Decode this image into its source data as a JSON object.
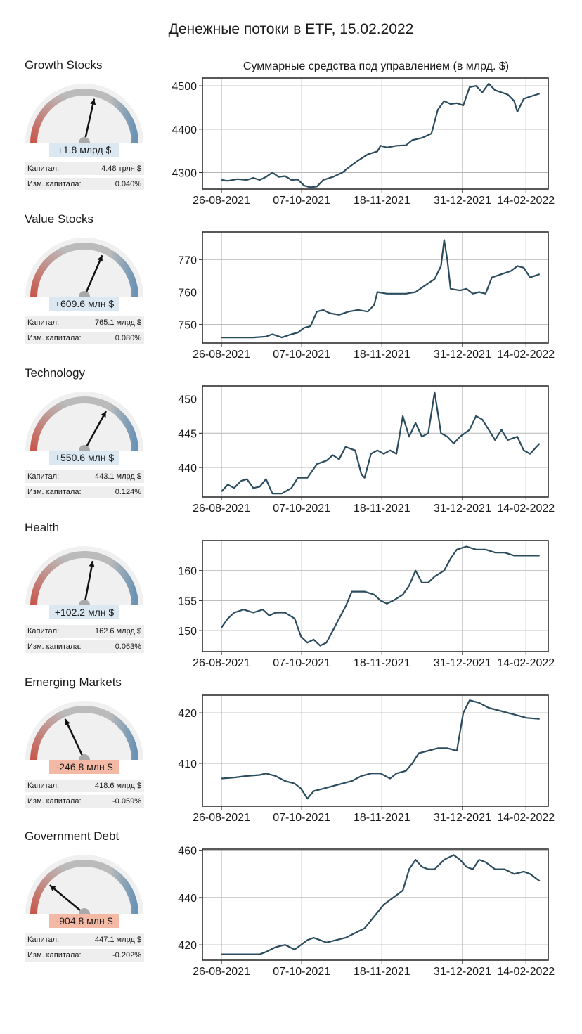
{
  "title": "Денежные потоки в ETF, 15.02.2022",
  "subtitle": "Суммарные средства под управлением (в млрд. $)",
  "labels": {
    "capital": "Капитал:",
    "change": "Изм. капитала:"
  },
  "colors": {
    "line": "#2b4c5e",
    "gauge_low": "#c8564a",
    "gauge_mid": "#bbbbbb",
    "gauge_high": "#6b93b4",
    "positive_badge": "#dce8f1",
    "negative_badge": "#f3b9a5"
  },
  "panels": [
    {
      "name": "Growth Stocks",
      "flow": "+1.8 млрд $",
      "flow_sign": "pos",
      "capital": "4.48 трлн $",
      "change": "0.040%",
      "gauge_value": 0.57,
      "chart_data": {
        "type": "line",
        "x_ticks": [
          "26-08-2021",
          "07-10-2021",
          "18-11-2021",
          "31-12-2021",
          "14-02-2022"
        ],
        "y_ticks": [
          4300,
          4400,
          4500
        ],
        "ylim": [
          4262,
          4518
        ],
        "grid": true,
        "points": [
          [
            0,
            4283
          ],
          [
            0.02,
            4281
          ],
          [
            0.05,
            4285
          ],
          [
            0.08,
            4283
          ],
          [
            0.1,
            4288
          ],
          [
            0.12,
            4283
          ],
          [
            0.14,
            4290
          ],
          [
            0.16,
            4300
          ],
          [
            0.18,
            4290
          ],
          [
            0.2,
            4292
          ],
          [
            0.22,
            4283
          ],
          [
            0.24,
            4284
          ],
          [
            0.26,
            4270
          ],
          [
            0.28,
            4266
          ],
          [
            0.3,
            4268
          ],
          [
            0.32,
            4283
          ],
          [
            0.35,
            4290
          ],
          [
            0.38,
            4300
          ],
          [
            0.4,
            4312
          ],
          [
            0.43,
            4328
          ],
          [
            0.46,
            4342
          ],
          [
            0.49,
            4349
          ],
          [
            0.5,
            4362
          ],
          [
            0.52,
            4358
          ],
          [
            0.55,
            4362
          ],
          [
            0.58,
            4363
          ],
          [
            0.6,
            4375
          ],
          [
            0.63,
            4380
          ],
          [
            0.66,
            4390
          ],
          [
            0.68,
            4445
          ],
          [
            0.7,
            4465
          ],
          [
            0.72,
            4458
          ],
          [
            0.74,
            4460
          ],
          [
            0.76,
            4455
          ],
          [
            0.78,
            4497
          ],
          [
            0.8,
            4500
          ],
          [
            0.82,
            4485
          ],
          [
            0.84,
            4505
          ],
          [
            0.86,
            4490
          ],
          [
            0.88,
            4485
          ],
          [
            0.9,
            4480
          ],
          [
            0.92,
            4465
          ],
          [
            0.93,
            4440
          ],
          [
            0.95,
            4470
          ],
          [
            0.97,
            4475
          ],
          [
            1,
            4482
          ]
        ]
      }
    },
    {
      "name": "Value Stocks",
      "flow": "+609.6 млн $",
      "flow_sign": "pos",
      "capital": "765.1 млрд $",
      "change": "0.080%",
      "gauge_value": 0.63,
      "chart_data": {
        "type": "line",
        "x_ticks": [
          "26-08-2021",
          "07-10-2021",
          "18-11-2021",
          "31-12-2021",
          "14-02-2022"
        ],
        "y_ticks": [
          750,
          760,
          770
        ],
        "ylim": [
          744.3,
          778.5
        ],
        "grid": true,
        "points": [
          [
            0,
            746
          ],
          [
            0.05,
            746
          ],
          [
            0.1,
            746
          ],
          [
            0.14,
            746.3
          ],
          [
            0.16,
            747
          ],
          [
            0.19,
            746
          ],
          [
            0.22,
            747
          ],
          [
            0.24,
            747.5
          ],
          [
            0.26,
            749
          ],
          [
            0.28,
            749.5
          ],
          [
            0.3,
            754
          ],
          [
            0.32,
            754.5
          ],
          [
            0.34,
            753.5
          ],
          [
            0.37,
            753
          ],
          [
            0.4,
            754
          ],
          [
            0.43,
            754.5
          ],
          [
            0.46,
            754
          ],
          [
            0.48,
            756
          ],
          [
            0.49,
            760
          ],
          [
            0.52,
            759.5
          ],
          [
            0.55,
            759.5
          ],
          [
            0.58,
            759.5
          ],
          [
            0.61,
            760
          ],
          [
            0.64,
            762
          ],
          [
            0.67,
            764
          ],
          [
            0.69,
            768
          ],
          [
            0.7,
            776
          ],
          [
            0.71,
            770
          ],
          [
            0.72,
            761
          ],
          [
            0.75,
            760.5
          ],
          [
            0.77,
            761
          ],
          [
            0.79,
            759.5
          ],
          [
            0.81,
            760
          ],
          [
            0.83,
            759.5
          ],
          [
            0.85,
            764.5
          ],
          [
            0.88,
            765.5
          ],
          [
            0.91,
            766.5
          ],
          [
            0.93,
            768
          ],
          [
            0.95,
            767.5
          ],
          [
            0.97,
            764.5
          ],
          [
            1,
            765.5
          ]
        ]
      }
    },
    {
      "name": "Technology",
      "flow": "+550.6 млн $",
      "flow_sign": "pos",
      "capital": "443.1 млрд $",
      "change": "0.124%",
      "gauge_value": 0.66,
      "chart_data": {
        "type": "line",
        "x_ticks": [
          "26-08-2021",
          "07-10-2021",
          "18-11-2021",
          "31-12-2021",
          "14-02-2022"
        ],
        "y_ticks": [
          440,
          445,
          450
        ],
        "ylim": [
          435.7,
          451.9
        ],
        "grid": true,
        "points": [
          [
            0,
            436.5
          ],
          [
            0.02,
            437.5
          ],
          [
            0.04,
            437
          ],
          [
            0.06,
            438
          ],
          [
            0.08,
            438.3
          ],
          [
            0.1,
            437
          ],
          [
            0.12,
            437.2
          ],
          [
            0.14,
            438.3
          ],
          [
            0.16,
            436.2
          ],
          [
            0.19,
            436.2
          ],
          [
            0.22,
            437
          ],
          [
            0.24,
            438.5
          ],
          [
            0.27,
            438.5
          ],
          [
            0.3,
            440.5
          ],
          [
            0.33,
            441
          ],
          [
            0.35,
            441.8
          ],
          [
            0.37,
            441.2
          ],
          [
            0.39,
            443
          ],
          [
            0.42,
            442.5
          ],
          [
            0.44,
            439
          ],
          [
            0.45,
            438.5
          ],
          [
            0.47,
            442
          ],
          [
            0.49,
            442.5
          ],
          [
            0.51,
            442
          ],
          [
            0.53,
            442.5
          ],
          [
            0.55,
            442
          ],
          [
            0.57,
            447.5
          ],
          [
            0.59,
            444.5
          ],
          [
            0.61,
            446.5
          ],
          [
            0.63,
            444.5
          ],
          [
            0.65,
            445
          ],
          [
            0.67,
            451
          ],
          [
            0.69,
            445
          ],
          [
            0.71,
            444.5
          ],
          [
            0.73,
            443.5
          ],
          [
            0.75,
            444.5
          ],
          [
            0.78,
            445.5
          ],
          [
            0.8,
            447.5
          ],
          [
            0.82,
            447
          ],
          [
            0.84,
            445.5
          ],
          [
            0.86,
            444
          ],
          [
            0.88,
            445.5
          ],
          [
            0.9,
            444
          ],
          [
            0.93,
            444.5
          ],
          [
            0.95,
            442.5
          ],
          [
            0.97,
            442
          ],
          [
            1,
            443.5
          ]
        ]
      }
    },
    {
      "name": "Health",
      "flow": "+102.2 млн $",
      "flow_sign": "pos",
      "capital": "162.6 млрд $",
      "change": "0.063%",
      "gauge_value": 0.56,
      "chart_data": {
        "type": "line",
        "x_ticks": [
          "26-08-2021",
          "07-10-2021",
          "18-11-2021",
          "31-12-2021",
          "14-02-2022"
        ],
        "y_ticks": [
          150,
          155,
          160
        ],
        "ylim": [
          146.5,
          165
        ],
        "grid": true,
        "points": [
          [
            0,
            150.5
          ],
          [
            0.02,
            152
          ],
          [
            0.04,
            153
          ],
          [
            0.07,
            153.5
          ],
          [
            0.1,
            153
          ],
          [
            0.13,
            153.5
          ],
          [
            0.15,
            152.5
          ],
          [
            0.17,
            153
          ],
          [
            0.2,
            153
          ],
          [
            0.23,
            152
          ],
          [
            0.25,
            149
          ],
          [
            0.27,
            148
          ],
          [
            0.29,
            148.5
          ],
          [
            0.31,
            147.5
          ],
          [
            0.33,
            148
          ],
          [
            0.35,
            150
          ],
          [
            0.37,
            152
          ],
          [
            0.39,
            154
          ],
          [
            0.41,
            156.5
          ],
          [
            0.43,
            156.5
          ],
          [
            0.45,
            156.5
          ],
          [
            0.48,
            156
          ],
          [
            0.5,
            155
          ],
          [
            0.52,
            154.5
          ],
          [
            0.54,
            155
          ],
          [
            0.57,
            156
          ],
          [
            0.59,
            157.5
          ],
          [
            0.61,
            160
          ],
          [
            0.63,
            158
          ],
          [
            0.65,
            158
          ],
          [
            0.67,
            159
          ],
          [
            0.7,
            160
          ],
          [
            0.72,
            162
          ],
          [
            0.74,
            163.5
          ],
          [
            0.77,
            164
          ],
          [
            0.8,
            163.5
          ],
          [
            0.83,
            163.5
          ],
          [
            0.86,
            163
          ],
          [
            0.89,
            163
          ],
          [
            0.92,
            162.5
          ],
          [
            0.95,
            162.5
          ],
          [
            1,
            162.5
          ]
        ]
      }
    },
    {
      "name": "Emerging Markets",
      "flow": "-246.8 млн $",
      "flow_sign": "neg",
      "capital": "418.6 млрд $",
      "change": "-0.059%",
      "gauge_value": 0.36,
      "chart_data": {
        "type": "line",
        "x_ticks": [
          "26-08-2021",
          "07-10-2021",
          "18-11-2021",
          "31-12-2021",
          "14-02-2022"
        ],
        "y_ticks": [
          410,
          420
        ],
        "ylim": [
          401.5,
          423.5
        ],
        "grid": true,
        "points": [
          [
            0,
            407
          ],
          [
            0.04,
            407.2
          ],
          [
            0.08,
            407.5
          ],
          [
            0.12,
            407.7
          ],
          [
            0.14,
            408
          ],
          [
            0.17,
            407.5
          ],
          [
            0.2,
            406.5
          ],
          [
            0.23,
            406
          ],
          [
            0.25,
            405
          ],
          [
            0.27,
            403
          ],
          [
            0.29,
            404.5
          ],
          [
            0.32,
            405
          ],
          [
            0.35,
            405.5
          ],
          [
            0.38,
            406
          ],
          [
            0.41,
            406.5
          ],
          [
            0.44,
            407.5
          ],
          [
            0.47,
            408
          ],
          [
            0.5,
            408
          ],
          [
            0.53,
            407
          ],
          [
            0.55,
            408
          ],
          [
            0.58,
            408.5
          ],
          [
            0.6,
            410
          ],
          [
            0.62,
            412
          ],
          [
            0.65,
            412.5
          ],
          [
            0.68,
            413
          ],
          [
            0.71,
            413
          ],
          [
            0.74,
            412.5
          ],
          [
            0.76,
            420
          ],
          [
            0.78,
            422.5
          ],
          [
            0.81,
            422
          ],
          [
            0.84,
            421
          ],
          [
            0.87,
            420.5
          ],
          [
            0.9,
            420
          ],
          [
            0.93,
            419.5
          ],
          [
            0.96,
            419
          ],
          [
            1,
            418.8
          ]
        ]
      }
    },
    {
      "name": "Government Debt",
      "flow": "-904.8 млн $",
      "flow_sign": "neg",
      "capital": "447.1 млрд $",
      "change": "-0.202%",
      "gauge_value": 0.22,
      "chart_data": {
        "type": "line",
        "x_ticks": [
          "26-08-2021",
          "07-10-2021",
          "18-11-2021",
          "31-12-2021",
          "14-02-2022"
        ],
        "y_ticks": [
          420,
          440,
          460
        ],
        "ylim": [
          413.5,
          460.5
        ],
        "grid": true,
        "points": [
          [
            0,
            416
          ],
          [
            0.04,
            416
          ],
          [
            0.08,
            416
          ],
          [
            0.12,
            416
          ],
          [
            0.14,
            417
          ],
          [
            0.17,
            419
          ],
          [
            0.2,
            420
          ],
          [
            0.23,
            418
          ],
          [
            0.25,
            420
          ],
          [
            0.27,
            422
          ],
          [
            0.29,
            423
          ],
          [
            0.31,
            422
          ],
          [
            0.33,
            421
          ],
          [
            0.36,
            422
          ],
          [
            0.39,
            423
          ],
          [
            0.42,
            425
          ],
          [
            0.45,
            427
          ],
          [
            0.48,
            432
          ],
          [
            0.51,
            437
          ],
          [
            0.54,
            440
          ],
          [
            0.57,
            443
          ],
          [
            0.59,
            452
          ],
          [
            0.61,
            456
          ],
          [
            0.63,
            453
          ],
          [
            0.65,
            452
          ],
          [
            0.67,
            452
          ],
          [
            0.7,
            456
          ],
          [
            0.73,
            458
          ],
          [
            0.75,
            456
          ],
          [
            0.77,
            453
          ],
          [
            0.79,
            452
          ],
          [
            0.81,
            456
          ],
          [
            0.83,
            455
          ],
          [
            0.86,
            452
          ],
          [
            0.89,
            452
          ],
          [
            0.92,
            450
          ],
          [
            0.95,
            451
          ],
          [
            0.97,
            450
          ],
          [
            1,
            447
          ]
        ]
      }
    }
  ]
}
